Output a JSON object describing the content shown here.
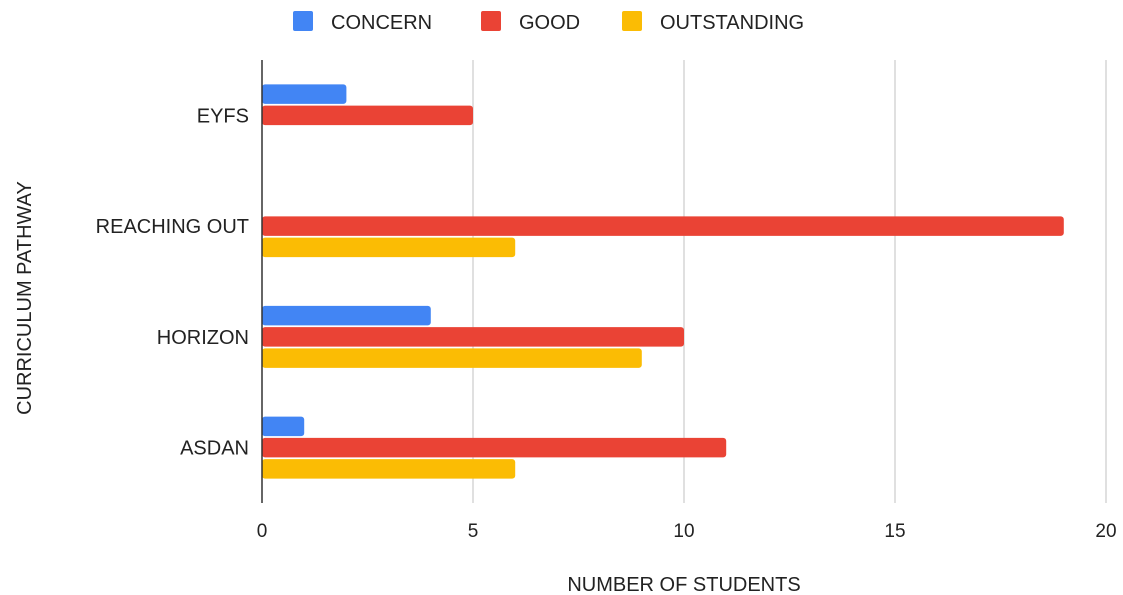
{
  "chart_data": {
    "type": "bar",
    "orientation": "horizontal",
    "categories": [
      "EYFS",
      "REACHING OUT",
      "HORIZON",
      "ASDAN"
    ],
    "series": [
      {
        "name": "CONCERN",
        "color": "#4285F4",
        "values": [
          2,
          0,
          4,
          1
        ]
      },
      {
        "name": "GOOD",
        "color": "#EA4335",
        "values": [
          5,
          19,
          10,
          11
        ]
      },
      {
        "name": "OUTSTANDING",
        "color": "#FBBC04",
        "values": [
          0,
          6,
          9,
          6
        ]
      }
    ],
    "xlabel": "NUMBER OF STUDENTS",
    "ylabel": "CURRICULUM PATHWAY",
    "xlim": [
      0,
      20
    ],
    "xticks": [
      0,
      5,
      10,
      15,
      20
    ],
    "grid": true,
    "legend_position": "top"
  }
}
